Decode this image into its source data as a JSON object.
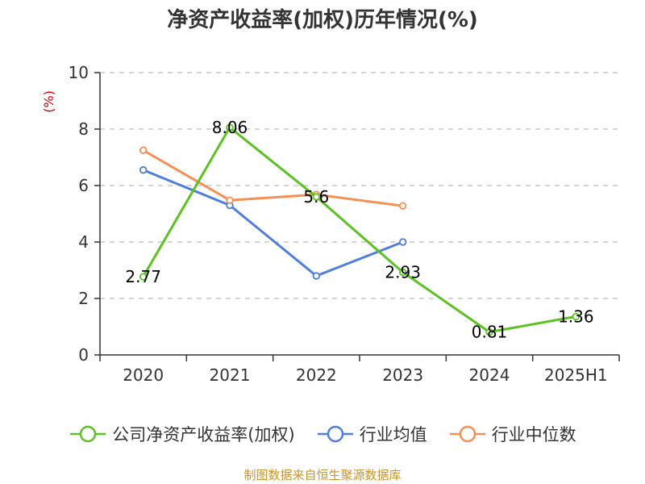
{
  "title": "净资产收益率(加权)历年情况(%)",
  "source": "制图数据来自恒生聚源数据库",
  "chart_data": {
    "type": "line",
    "title": "净资产收益率(加权)历年情况(%)",
    "ylabel": "(%)",
    "xlabel": "",
    "categories": [
      "2020",
      "2021",
      "2022",
      "2023",
      "2024",
      "2025H1"
    ],
    "ylim": [
      0,
      10
    ],
    "yticks": [
      0,
      2,
      4,
      6,
      8,
      10
    ],
    "grid": true,
    "legend_position": "bottom",
    "series": [
      {
        "name": "公司净资产收益率(加权)",
        "color": "#5cc122",
        "values": [
          2.77,
          8.06,
          5.6,
          2.93,
          0.81,
          1.36
        ],
        "labels": [
          "2.77",
          "8.06",
          "5.6",
          "2.93",
          "0.81",
          "1.36"
        ]
      },
      {
        "name": "行业均值",
        "color": "#4f7fdb",
        "values": [
          6.55,
          5.3,
          2.8,
          4.0,
          null,
          null
        ]
      },
      {
        "name": "行业中位数",
        "color": "#f58f55",
        "values": [
          7.25,
          5.48,
          5.68,
          5.28,
          null,
          null
        ]
      }
    ]
  }
}
